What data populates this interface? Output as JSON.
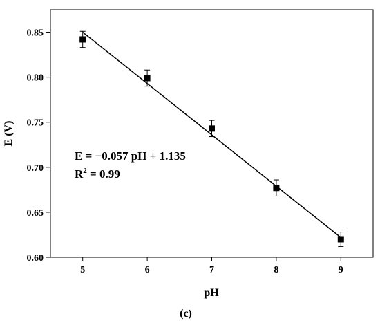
{
  "chart_data": {
    "type": "scatter",
    "xlabel": "pH",
    "ylabel": "E (V)",
    "xlim": [
      4.5,
      9.5
    ],
    "ylim": [
      0.6,
      0.875
    ],
    "x_ticks": [
      5,
      6,
      7,
      8,
      9
    ],
    "x_tick_labels": [
      "5",
      "6",
      "7",
      "8",
      "9"
    ],
    "y_ticks": [
      0.6,
      0.65,
      0.7,
      0.75,
      0.8,
      0.85
    ],
    "y_tick_labels": [
      "0.60",
      "0.65",
      "0.70",
      "0.75",
      "0.80",
      "0.85"
    ],
    "grid": false,
    "series": [
      {
        "x": [
          5,
          6,
          7,
          8,
          9
        ],
        "y": [
          0.842,
          0.799,
          0.743,
          0.677,
          0.62
        ],
        "error": [
          0.009,
          0.009,
          0.009,
          0.009,
          0.008
        ],
        "marker": "square",
        "color": "#000000"
      }
    ],
    "fit_line": {
      "x": [
        5,
        9
      ],
      "y": [
        0.85,
        0.622
      ],
      "slope": -0.057,
      "intercept": 1.135,
      "color": "#000000"
    },
    "annotation_line1": "E = −0.057 pH + 1.135",
    "annotation_line2_prefix": "R",
    "annotation_line2_sup": "2",
    "annotation_line2_suffix": " = 0.99",
    "caption": "(c)"
  }
}
